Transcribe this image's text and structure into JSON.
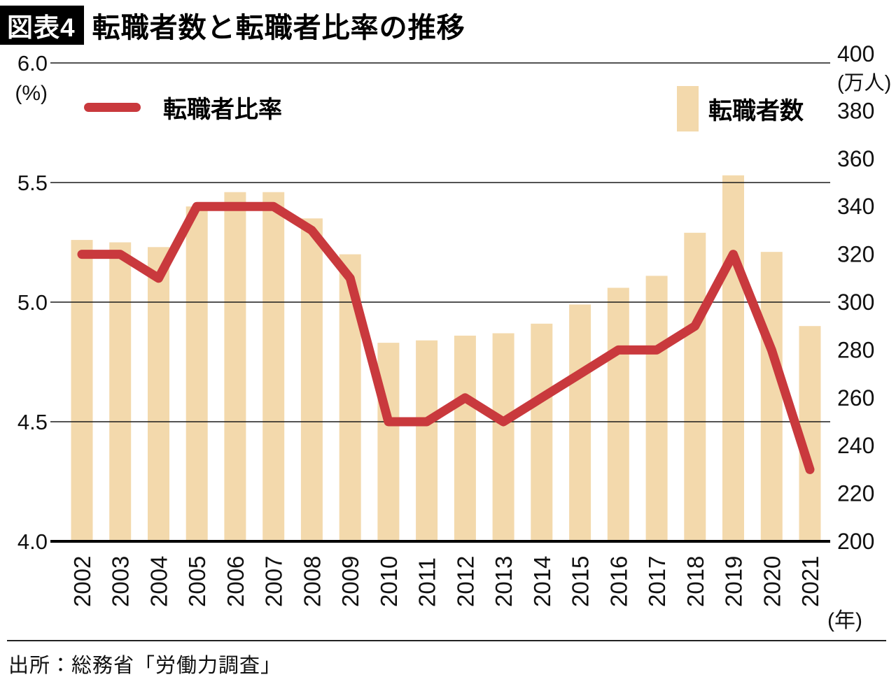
{
  "header": {
    "badge": "図表4",
    "title": "転職者数と転職者比率の推移"
  },
  "source": "出所：総務省「労働力調査」",
  "chart_data": {
    "type": "bar+line combo",
    "categories": [
      "2002",
      "2003",
      "2004",
      "2005",
      "2006",
      "2007",
      "2008",
      "2009",
      "2010",
      "2011",
      "2012",
      "2013",
      "2014",
      "2015",
      "2016",
      "2017",
      "2018",
      "2019",
      "2020",
      "2021"
    ],
    "series": [
      {
        "name": "転職者比率",
        "type": "line",
        "axis": "left",
        "unit": "%",
        "color": "#C9393D",
        "values": [
          5.2,
          5.2,
          5.1,
          5.4,
          5.4,
          5.4,
          5.3,
          5.1,
          4.5,
          4.5,
          4.6,
          4.5,
          4.6,
          4.7,
          4.8,
          4.8,
          4.9,
          5.2,
          4.8,
          4.3
        ]
      },
      {
        "name": "転職者数",
        "type": "bar",
        "axis": "right",
        "unit": "万人",
        "color": "#F3D9AC",
        "values": [
          326,
          325,
          323,
          340,
          346,
          346,
          335,
          320,
          283,
          284,
          286,
          287,
          291,
          299,
          306,
          311,
          329,
          353,
          321,
          290
        ]
      }
    ],
    "left_axis": {
      "unit_label": "(%)",
      "min": 4.0,
      "max": 6.0,
      "ticks": [
        "6.0",
        "5.5",
        "5.0",
        "4.5",
        "4.0"
      ]
    },
    "right_axis": {
      "unit_label": "(万人)",
      "min": 200,
      "max": 400,
      "ticks": [
        "400",
        "380",
        "360",
        "340",
        "320",
        "300",
        "280",
        "260",
        "240",
        "220",
        "200"
      ]
    },
    "x_axis_unit_label": "(年)",
    "grid": true,
    "legend_position": "top"
  }
}
